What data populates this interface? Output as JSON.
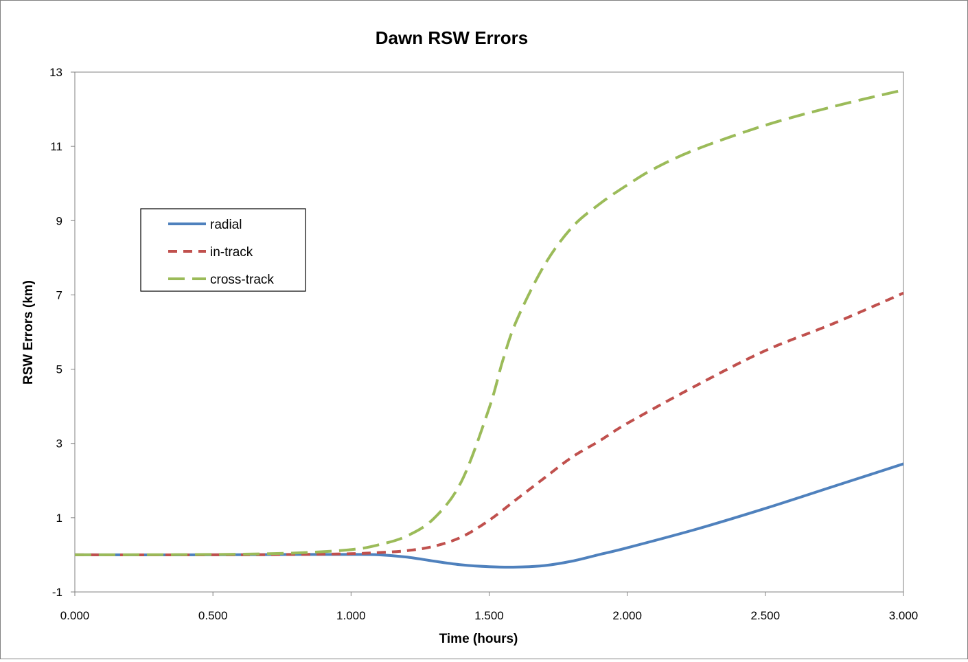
{
  "chart_data": {
    "type": "line",
    "title": "Dawn RSW Errors",
    "xlabel": "Time (hours)",
    "ylabel": "RSW Errors (km)",
    "xlim": [
      0,
      3
    ],
    "ylim": [
      -1,
      13
    ],
    "x_ticks": [
      "0.000",
      "0.500",
      "1.000",
      "1.500",
      "2.000",
      "2.500",
      "3.000"
    ],
    "y_ticks": [
      "-1",
      "1",
      "3",
      "5",
      "7",
      "9",
      "11",
      "13"
    ],
    "grid": false,
    "legend": {
      "position": "upper-left"
    },
    "series": [
      {
        "name": "radial",
        "color": "#4F81BD",
        "dash": "solid",
        "x": [
          0,
          0.5,
          0.8,
          1.0,
          1.1,
          1.2,
          1.3,
          1.4,
          1.5,
          1.6,
          1.7,
          1.8,
          1.9,
          2.0,
          2.25,
          2.5,
          2.75,
          3.0
        ],
        "y": [
          0,
          0,
          0.01,
          0.01,
          0,
          -0.06,
          -0.17,
          -0.27,
          -0.32,
          -0.33,
          -0.29,
          -0.17,
          0.01,
          0.19,
          0.69,
          1.25,
          1.85,
          2.45
        ]
      },
      {
        "name": "in-track",
        "color": "#C0504D",
        "dash": "short",
        "x": [
          0,
          0.5,
          0.8,
          1.0,
          1.1,
          1.2,
          1.3,
          1.4,
          1.5,
          1.6,
          1.7,
          1.8,
          1.9,
          2.0,
          2.25,
          2.5,
          2.75,
          3.0
        ],
        "y": [
          0,
          0,
          0.01,
          0.03,
          0.06,
          0.11,
          0.23,
          0.48,
          0.93,
          1.5,
          2.07,
          2.63,
          3.07,
          3.54,
          4.56,
          5.5,
          6.24,
          7.05
        ]
      },
      {
        "name": "cross-track",
        "color": "#9BBB59",
        "dash": "long",
        "x": [
          0,
          0.5,
          0.8,
          1.0,
          1.1,
          1.2,
          1.3,
          1.4,
          1.5,
          1.55,
          1.6,
          1.7,
          1.8,
          1.9,
          2.0,
          2.1,
          2.25,
          2.5,
          2.75,
          3.0
        ],
        "y": [
          0,
          0.01,
          0.05,
          0.14,
          0.27,
          0.5,
          0.98,
          1.98,
          3.95,
          5.25,
          6.32,
          7.8,
          8.82,
          9.45,
          9.96,
          10.41,
          10.92,
          11.57,
          12.08,
          12.52
        ]
      }
    ]
  }
}
